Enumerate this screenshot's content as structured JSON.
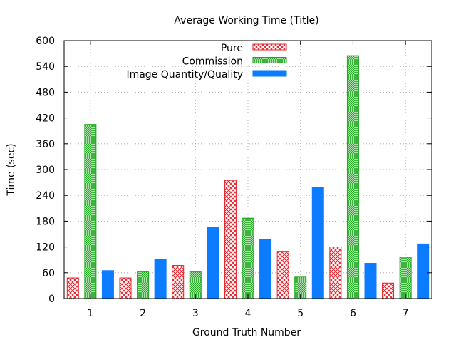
{
  "colors": {
    "pure": "#e8212a",
    "commission": "#1ea81e",
    "image": "#0b7bff",
    "grid": "#a0a0a0",
    "axis": "#000000"
  },
  "chart_data": {
    "type": "bar",
    "title": "Average Working Time (Title)",
    "xlabel": "Ground Truth Number",
    "ylabel": "Time (sec)",
    "categories": [
      "1",
      "2",
      "3",
      "4",
      "5",
      "6",
      "7"
    ],
    "ylim": [
      0,
      600
    ],
    "yticks": [
      "0",
      "60",
      "120",
      "180",
      "240",
      "300",
      "360",
      "420",
      "480",
      "540",
      "600"
    ],
    "grid": true,
    "legend_position": "top-right",
    "series": [
      {
        "name": "Pure",
        "pattern": "crosshatch",
        "values": [
          48,
          48,
          77,
          275,
          110,
          120,
          36
        ]
      },
      {
        "name": "Commission",
        "pattern": "fine-hatch",
        "values": [
          405,
          62,
          62,
          187,
          50,
          565,
          96
        ]
      },
      {
        "name": "Image Quantity/Quality",
        "pattern": "solid",
        "values": [
          65,
          92,
          166,
          137,
          258,
          82,
          127
        ]
      }
    ]
  }
}
